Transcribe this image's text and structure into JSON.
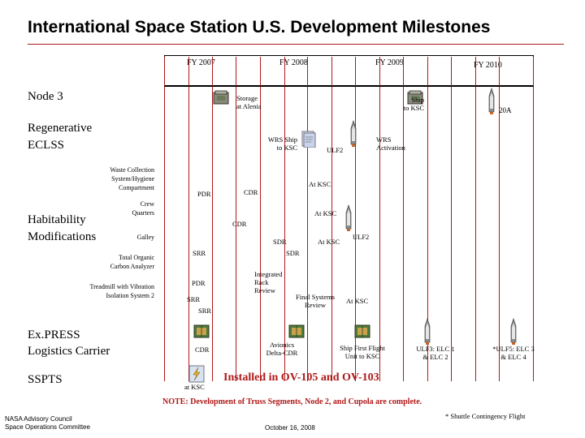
{
  "title": "International Space Station U.S. Development Milestones",
  "fiscal_years": [
    "FY 2007",
    "FY 2008",
    "FY 2009",
    "FY 2010"
  ],
  "rows": {
    "node3": "Node 3",
    "eclss": [
      "Regenerative",
      "ECLSS"
    ],
    "habitability": [
      "Habitability",
      "Modifications"
    ],
    "express": [
      "Ex.PRESS",
      "Logistics Carrier"
    ],
    "sspts": "SSPTS"
  },
  "sub_rows": {
    "waste": [
      "Waste Collection",
      "System/Hygiene",
      "Compartment"
    ],
    "crew": [
      "Crew",
      "Quarters"
    ],
    "galley": "Galley",
    "toca": [
      "Total Organic",
      "Carbon Analyzer"
    ],
    "treadmill": [
      "Treadmill with Vibration",
      "Isolation System 2"
    ]
  },
  "milestones": {
    "storage": [
      "Storage",
      "at Alenia"
    ],
    "ship_ksc_node3": [
      "Ship",
      "to KSC"
    ],
    "flight_20a": "20A",
    "wrs_ship": [
      "WRS Ship",
      "to KSC"
    ],
    "ulf2": "ULF2",
    "wrs_activation": [
      "WRS",
      "Activation"
    ],
    "waste_pdr": "PDR",
    "waste_cdr": "CDR",
    "waste_at_ksc": "At KSC",
    "crew_at_ksc": "At KSC",
    "crew_cdr": "CDR",
    "galley_sdr": "SDR",
    "galley_at_ksc": "At KSC",
    "galley_ulf2": "ULF2",
    "toca_srr": "SRR",
    "toca_sdr": "SDR",
    "tread_pdr": "PDR",
    "tread_srr1": "SRR",
    "tread_srr2": "SRR",
    "integrated": [
      "Integrated",
      "Rack",
      "Review"
    ],
    "final_systems": [
      "Final Systems",
      "Review"
    ],
    "tread_at_ksc": "At KSC",
    "express_cdr": "CDR",
    "avionics": [
      "Avionics",
      "Delta-CDR"
    ],
    "ship_first": [
      "Ship First Flight",
      "Unit to KSC"
    ],
    "ulf3": [
      "ULF3: ELC 1",
      "& ELC 2"
    ],
    "ulf5": [
      "*ULF5: ELC 3",
      "& ELC 4"
    ],
    "sspts_at_ksc": "at KSC"
  },
  "installed": "Installed in OV-105 and OV-103",
  "note": "NOTE: Development of Truss Segments, Node 2, and Cupola are complete.",
  "footnote": "* Shuttle Contingency Flight",
  "org": [
    "NASA Advisory Council",
    "Space Operations Committee"
  ],
  "date": "October 16, 2008",
  "colors": {
    "accent_red": "#b01818",
    "crate_green": "#4f7a3a",
    "shuttle_gray": "#8c8c8c"
  }
}
